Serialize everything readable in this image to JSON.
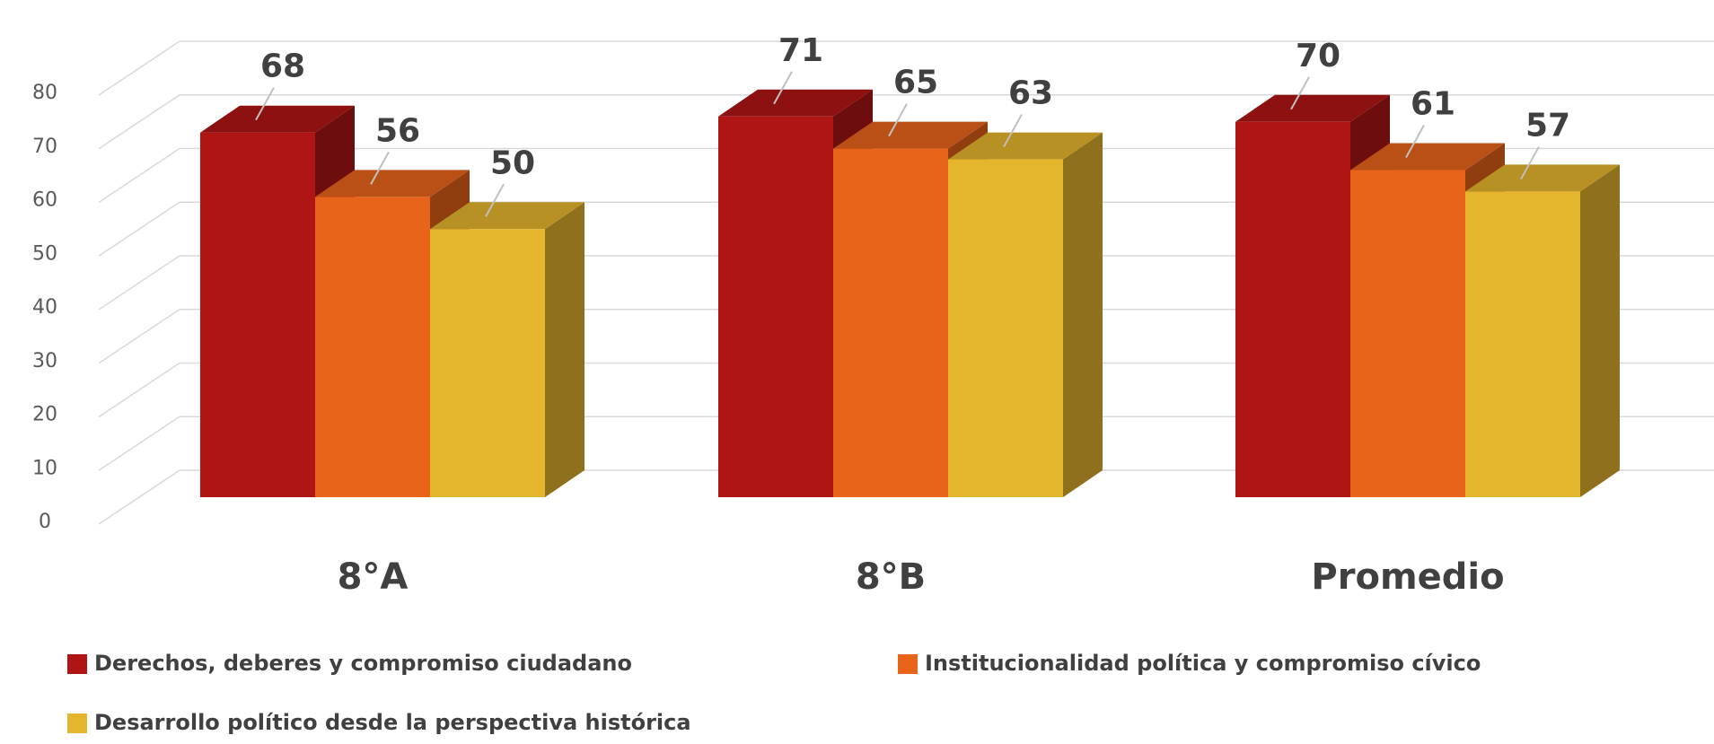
{
  "chart_data": {
    "type": "bar3d",
    "categories": [
      "8°A",
      "8°B",
      "Promedio"
    ],
    "series": [
      {
        "name": "Derechos, deberes y compromiso ciudadano",
        "color": "#b01515",
        "values": [
          68,
          71,
          70
        ]
      },
      {
        "name": "Institucionalidad política y compromiso cívico",
        "color": "#e8641a",
        "values": [
          56,
          65,
          61
        ]
      },
      {
        "name": "Desarrollo político desde la perspectiva histórica",
        "color": "#e6b52e",
        "values": [
          50,
          63,
          57
        ]
      }
    ],
    "ylim": [
      0,
      80
    ],
    "yticks": [
      0,
      10,
      20,
      30,
      40,
      50,
      60,
      70,
      80
    ],
    "grid": true
  }
}
